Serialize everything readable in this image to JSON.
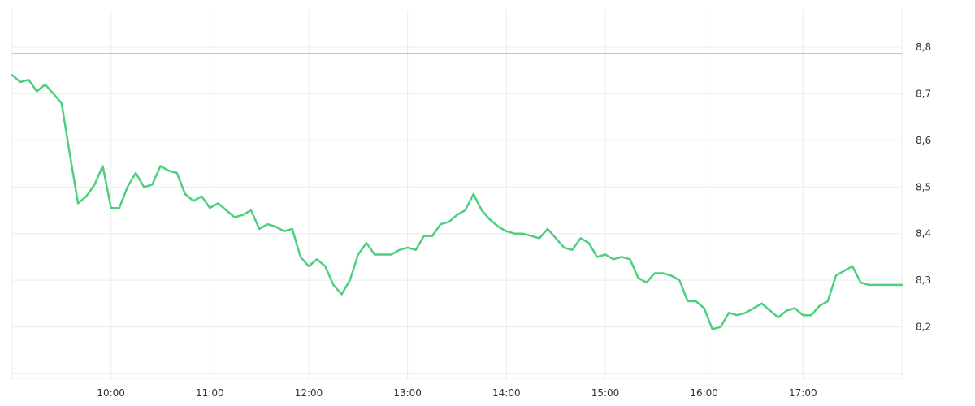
{
  "chart_data": {
    "type": "line",
    "title": "",
    "xlabel": "",
    "ylabel": "",
    "x_tick_labels": [
      "10:00",
      "11:00",
      "12:00",
      "13:00",
      "14:00",
      "15:00",
      "16:00",
      "17:00"
    ],
    "y_tick_labels": [
      "8,8",
      "8,7",
      "8,6",
      "8,5",
      "8,4",
      "8,3",
      "8,2"
    ],
    "y_ticks": [
      8.8,
      8.7,
      8.6,
      8.5,
      8.4,
      8.3,
      8.2
    ],
    "x_ticks": [
      "10:00",
      "11:00",
      "12:00",
      "13:00",
      "14:00",
      "15:00",
      "16:00",
      "17:00"
    ],
    "xlim": [
      "9:00",
      "18:00"
    ],
    "ylim": [
      8.1,
      8.88
    ],
    "y_axis_position": "right",
    "grid": true,
    "reference_line": {
      "value": 8.786,
      "color": "#e06666"
    },
    "series": [
      {
        "color": "#4cd07d",
        "x": [
          "09:00",
          "09:05",
          "09:10",
          "09:15",
          "09:20",
          "09:25",
          "09:30",
          "09:35",
          "09:40",
          "09:45",
          "09:50",
          "09:55",
          "10:00",
          "10:05",
          "10:10",
          "10:15",
          "10:20",
          "10:25",
          "10:30",
          "10:35",
          "10:40",
          "10:45",
          "10:50",
          "10:55",
          "11:00",
          "11:05",
          "11:10",
          "11:15",
          "11:20",
          "11:25",
          "11:30",
          "11:35",
          "11:40",
          "11:45",
          "11:50",
          "11:55",
          "12:00",
          "12:05",
          "12:10",
          "12:15",
          "12:20",
          "12:25",
          "12:30",
          "12:35",
          "12:40",
          "12:45",
          "12:50",
          "12:55",
          "13:00",
          "13:05",
          "13:10",
          "13:15",
          "13:20",
          "13:25",
          "13:30",
          "13:35",
          "13:40",
          "13:45",
          "13:50",
          "13:55",
          "14:00",
          "14:05",
          "14:10",
          "14:15",
          "14:20",
          "14:25",
          "14:30",
          "14:35",
          "14:40",
          "14:45",
          "14:50",
          "14:55",
          "15:00",
          "15:05",
          "15:10",
          "15:15",
          "15:20",
          "15:25",
          "15:30",
          "15:35",
          "15:40",
          "15:45",
          "15:50",
          "15:55",
          "16:00",
          "16:05",
          "16:10",
          "16:15",
          "16:20",
          "16:25",
          "16:30",
          "16:35",
          "16:40",
          "16:45",
          "16:50",
          "16:55",
          "17:00",
          "17:05",
          "17:10",
          "17:15",
          "17:20",
          "17:25",
          "17:30",
          "17:35",
          "17:40",
          "17:45",
          "17:50",
          "17:55",
          "18:00"
        ],
        "y": [
          8.74,
          8.725,
          8.73,
          8.705,
          8.72,
          8.7,
          8.68,
          8.57,
          8.465,
          8.48,
          8.505,
          8.545,
          8.455,
          8.455,
          8.5,
          8.53,
          8.5,
          8.505,
          8.545,
          8.535,
          8.53,
          8.485,
          8.47,
          8.48,
          8.455,
          8.465,
          8.45,
          8.435,
          8.44,
          8.45,
          8.41,
          8.42,
          8.415,
          8.405,
          8.41,
          8.35,
          8.33,
          8.345,
          8.33,
          8.29,
          8.27,
          8.3,
          8.355,
          8.38,
          8.355,
          8.355,
          8.355,
          8.365,
          8.37,
          8.365,
          8.395,
          8.395,
          8.42,
          8.425,
          8.44,
          8.45,
          8.485,
          8.45,
          8.43,
          8.415,
          8.405,
          8.4,
          8.4,
          8.395,
          8.39,
          8.41,
          8.39,
          8.37,
          8.365,
          8.39,
          8.38,
          8.35,
          8.355,
          8.345,
          8.35,
          8.345,
          8.305,
          8.295,
          8.315,
          8.315,
          8.31,
          8.3,
          8.255,
          8.255,
          8.24,
          8.195,
          8.2,
          8.23,
          8.225,
          8.23,
          8.24,
          8.25,
          8.235,
          8.22,
          8.235,
          8.24,
          8.225,
          8.225,
          8.245,
          8.255,
          8.31,
          8.32,
          8.33,
          8.295,
          8.29,
          8.29,
          8.29,
          8.29,
          8.29
        ]
      }
    ]
  }
}
